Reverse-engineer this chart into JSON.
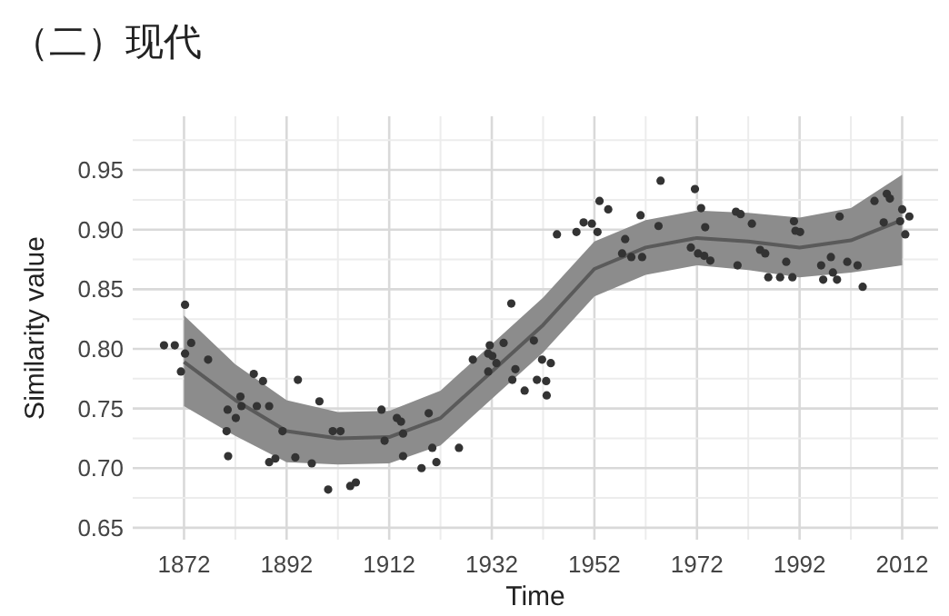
{
  "chart_data": {
    "type": "scatter",
    "title": "（二）现代",
    "xlabel": "Time",
    "ylabel": "Similarity value",
    "xlim": [
      1862,
      2019
    ],
    "ylim": [
      0.64,
      0.995
    ],
    "xticks": [
      1872,
      1892,
      1912,
      1932,
      1952,
      1972,
      1992,
      2012
    ],
    "yticks": [
      {
        "value": 0.65,
        "label": "0.65"
      },
      {
        "value": 0.7,
        "label": "0.70"
      },
      {
        "value": 0.75,
        "label": "0.75"
      },
      {
        "value": 0.8,
        "label": "0.80"
      },
      {
        "value": 0.85,
        "label": "0.85"
      },
      {
        "value": 0.9,
        "label": "0.90"
      },
      {
        "value": 0.95,
        "label": "0.95"
      }
    ],
    "grid": true,
    "series": [
      {
        "type": "line",
        "color": "#5a5a5a",
        "x": [
          1872,
          1882,
          1892,
          1902,
          1912,
          1922,
          1932,
          1942,
          1952,
          1962,
          1972,
          1982,
          1992,
          2002,
          2012
        ],
        "values": [
          0.789,
          0.757,
          0.731,
          0.725,
          0.726,
          0.742,
          0.781,
          0.82,
          0.867,
          0.885,
          0.893,
          0.89,
          0.885,
          0.891,
          0.908
        ],
        "lower": [
          0.752,
          0.727,
          0.705,
          0.703,
          0.704,
          0.719,
          0.758,
          0.797,
          0.844,
          0.862,
          0.87,
          0.866,
          0.86,
          0.864,
          0.87
        ],
        "upper": [
          0.828,
          0.787,
          0.757,
          0.747,
          0.748,
          0.765,
          0.804,
          0.843,
          0.89,
          0.908,
          0.916,
          0.914,
          0.91,
          0.918,
          0.946
        ]
      },
      {
        "color": "#333333",
        "marker": "circle",
        "x": [
          1868.1,
          1870.2,
          1872.2,
          1873.4,
          1872.2,
          1871.4,
          1876.7,
          1880.3,
          1880.6,
          1880.5,
          1882.1,
          1883,
          1883.2,
          1885.6,
          1887.4,
          1886.2,
          1888.6,
          1888.6,
          1889.8,
          1891.2,
          1893.7,
          1894.2,
          1896.9,
          1898.4,
          1900.1,
          1901,
          1902.5,
          1904.4,
          1905.5,
          1910.5,
          1911.1,
          1913.5,
          1914.3,
          1914.7,
          1914.7,
          1918.3,
          1919.7,
          1920.4,
          1921.2,
          1925.6,
          1928.3,
          1931.3,
          1931.6,
          1932.1,
          1932.9,
          1931.3,
          1934.3,
          1935.8,
          1936.6,
          1936,
          1938.4,
          1940.2,
          1940.8,
          1941.8,
          1942.6,
          1943.5,
          1942.7,
          1944.7,
          1948.5,
          1949.9,
          1951.5,
          1952.6,
          1953,
          1954.7,
          1958,
          1961,
          1959.2,
          1961.3,
          1957.4,
          1964.5,
          1964.9,
          1971.6,
          1972.8,
          1973.6,
          1970.8,
          1972.2,
          1973.4,
          1974.6,
          1979.6,
          1980.5,
          1982.7,
          1979.9,
          1984.3,
          1985.3,
          1985.9,
          1988.2,
          1989.4,
          1990.6,
          1990.9,
          1991.2,
          1992.1,
          1996.2,
          1996.6,
          1998.1,
          1998.5,
          1999.3,
          1999.8,
          2001.3,
          2003.3,
          2004.3,
          2006.6,
          2009,
          2009.6,
          2008.4,
          2012,
          2012.6,
          2013.4,
          2011.6
        ],
        "values": [
          0.803,
          0.803,
          0.837,
          0.805,
          0.796,
          0.781,
          0.791,
          0.731,
          0.71,
          0.749,
          0.742,
          0.76,
          0.752,
          0.779,
          0.773,
          0.752,
          0.752,
          0.705,
          0.708,
          0.731,
          0.709,
          0.774,
          0.704,
          0.756,
          0.682,
          0.731,
          0.731,
          0.685,
          0.688,
          0.749,
          0.723,
          0.742,
          0.739,
          0.729,
          0.71,
          0.7,
          0.746,
          0.717,
          0.705,
          0.717,
          0.791,
          0.796,
          0.803,
          0.794,
          0.788,
          0.781,
          0.805,
          0.838,
          0.783,
          0.774,
          0.765,
          0.807,
          0.774,
          0.791,
          0.773,
          0.788,
          0.761,
          0.896,
          0.898,
          0.906,
          0.905,
          0.898,
          0.924,
          0.917,
          0.892,
          0.912,
          0.877,
          0.877,
          0.88,
          0.903,
          0.941,
          0.934,
          0.918,
          0.902,
          0.885,
          0.88,
          0.878,
          0.874,
          0.915,
          0.913,
          0.905,
          0.87,
          0.883,
          0.88,
          0.86,
          0.86,
          0.873,
          0.86,
          0.907,
          0.899,
          0.898,
          0.87,
          0.858,
          0.877,
          0.864,
          0.858,
          0.911,
          0.873,
          0.87,
          0.852,
          0.924,
          0.93,
          0.926,
          0.906,
          0.917,
          0.896,
          0.911,
          0.907
        ]
      }
    ]
  }
}
